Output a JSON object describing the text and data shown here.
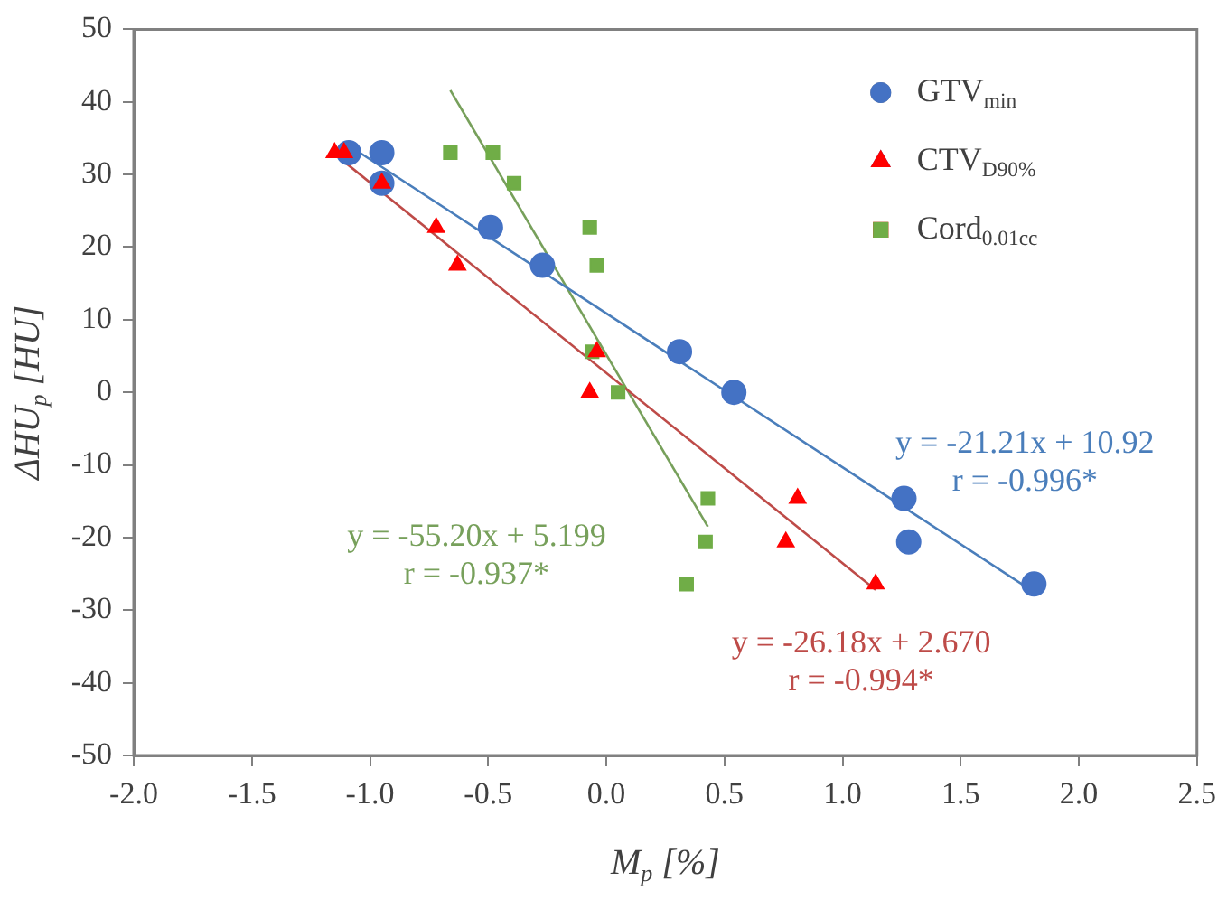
{
  "chart_data": {
    "type": "scatter",
    "xlabel": "M$_{p}$ [%]",
    "ylabel": "ΔHU$_{p}$ [HU]",
    "xlim": [
      -2.0,
      2.5
    ],
    "xticks": [
      {
        "value": -2,
        "label": "-2.0"
      },
      {
        "value": -1.5,
        "label": "-1.5"
      },
      {
        "value": -1,
        "label": "-1.0"
      },
      {
        "value": -0.5,
        "label": "-0.5"
      },
      {
        "value": 0,
        "label": "0.0"
      },
      {
        "value": 0.5,
        "label": "0.5"
      },
      {
        "value": 1,
        "label": "1.0"
      },
      {
        "value": 1.5,
        "label": "1.5"
      },
      {
        "value": 2,
        "label": "2.0"
      },
      {
        "value": 2.5,
        "label": "2.5"
      }
    ],
    "ylim": [
      -50,
      50
    ],
    "yticks": [
      -50,
      -40,
      -30,
      -20,
      -10,
      0,
      10,
      20,
      30,
      40,
      50
    ],
    "grid": false,
    "legend": "top right",
    "series": [
      {
        "name": "GTV$_{min}$",
        "color": "#4472c4",
        "marker": "circle",
        "x": [
          -1.09,
          -0.95,
          -0.95,
          -0.49,
          -0.27,
          0.31,
          0.54,
          1.26,
          1.28,
          1.81
        ],
        "values": [
          33,
          33,
          28.8,
          22.7,
          17.5,
          5.6,
          0,
          -14.6,
          -20.6,
          -26.4
        ]
      },
      {
        "name": "CTV$_{D90%}$",
        "color": "#ff0000",
        "marker": "triangle",
        "x": [
          -1.15,
          -1.11,
          -0.95,
          -0.72,
          -0.63,
          -0.04,
          -0.07,
          0.81,
          0.76,
          1.14
        ],
        "values": [
          33,
          33,
          28.8,
          22.7,
          17.5,
          5.6,
          0,
          -14.6,
          -20.6,
          -26.4
        ]
      },
      {
        "name": "Cord$_{0.01cc}$",
        "color": "#70ad47",
        "marker": "square",
        "x": [
          -0.66,
          -0.48,
          -0.39,
          -0.07,
          -0.04,
          -0.06,
          0.05,
          0.43,
          0.42,
          0.34
        ],
        "values": [
          33,
          33,
          28.8,
          22.7,
          17.5,
          5.6,
          0,
          -14.6,
          -20.6,
          -26.4
        ]
      },
      {
        "type": "line",
        "color": "#4a7ebb",
        "marker": "none",
        "x": [
          -1.09,
          1.81
        ],
        "values": [
          34,
          -27.5
        ]
      },
      {
        "type": "line",
        "color": "#be4b48",
        "marker": "none",
        "x": [
          -1.13,
          1.14
        ],
        "values": [
          32.3,
          -27.2
        ]
      },
      {
        "type": "line",
        "color": "#77a05b",
        "marker": "none",
        "x": [
          -0.66,
          0.43
        ],
        "values": [
          41.6,
          -18.5
        ]
      }
    ],
    "annotations": [
      "y = -21.21x + 10.92",
      "r = -0.996*",
      "y = -26.18x + 2.670",
      "r = -0.994*",
      "y = -55.20x + 5.199",
      "r = -0.937*"
    ]
  }
}
